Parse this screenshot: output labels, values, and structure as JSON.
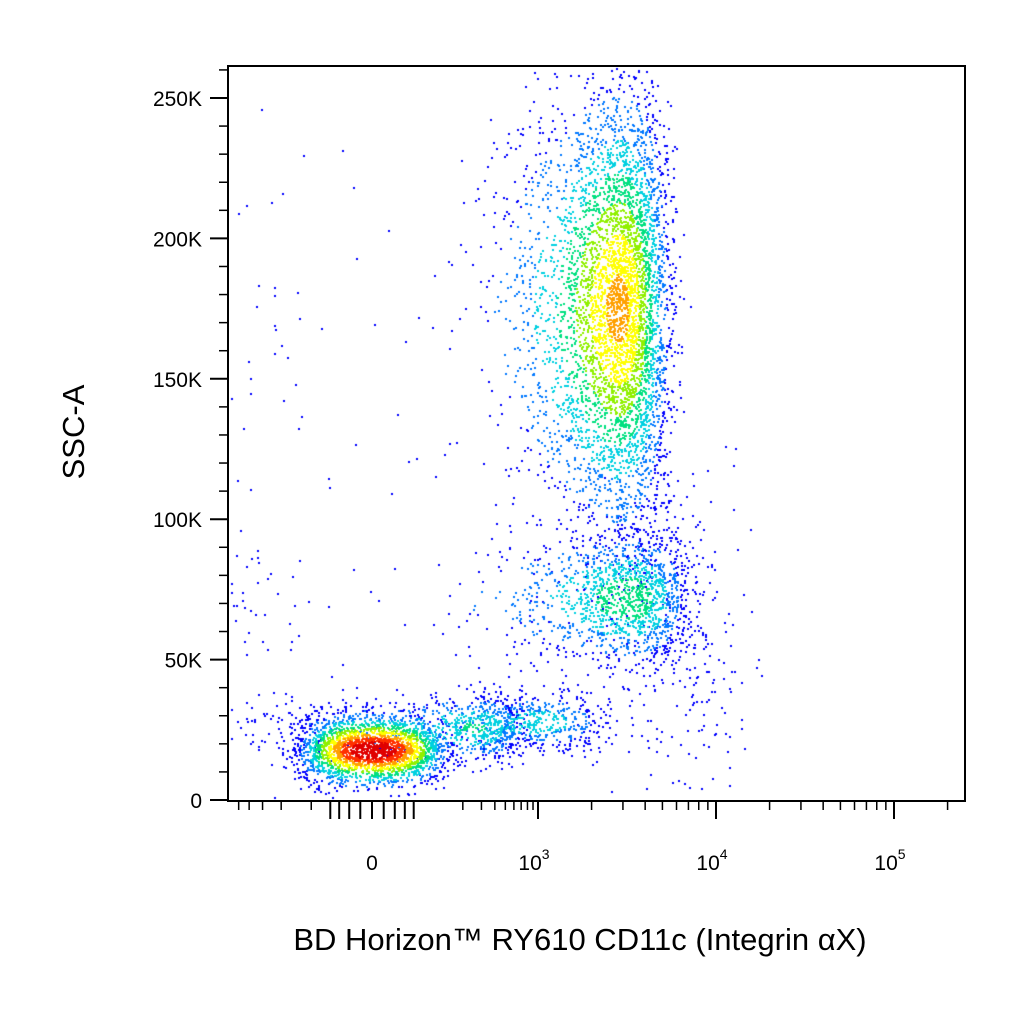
{
  "chart_data": {
    "type": "scatter",
    "title": "",
    "xlabel": "BD Horizon™ RY610 CD11c (Integrin αX)",
    "ylabel": "SSC-A",
    "x_scale": "biexponential",
    "xlim": [
      -600,
      200000
    ],
    "ylim": [
      -3000,
      262144
    ],
    "grid": false,
    "legend": "none",
    "x_ticks": [
      {
        "value": 0,
        "base": "0",
        "exp": ""
      },
      {
        "value": 1000,
        "base": "10",
        "exp": "3"
      },
      {
        "value": 10000,
        "base": "10",
        "exp": "4"
      },
      {
        "value": 100000,
        "base": "10",
        "exp": "5"
      }
    ],
    "y_ticks": [
      {
        "value": 0,
        "label": "0"
      },
      {
        "value": 50000,
        "label": "50K"
      },
      {
        "value": 100000,
        "label": "100K"
      },
      {
        "value": 150000,
        "label": "150K"
      },
      {
        "value": 200000,
        "label": "200K"
      },
      {
        "value": 250000,
        "label": "250K"
      }
    ],
    "density_colors": [
      "#0000ff",
      "#0078ff",
      "#00d0e0",
      "#00e080",
      "#90f000",
      "#ffff00",
      "#ffa000",
      "#ff3000",
      "#e00000"
    ],
    "populations": [
      {
        "x_center": 0,
        "x_spread": 60,
        "y_center": 18000,
        "y_spread": 6000,
        "events": 2600,
        "peak_density": 1.0
      },
      {
        "x_center": 250,
        "x_spread": 220,
        "y_center": 26000,
        "y_spread": 6000,
        "events": 700,
        "peak_density": 0.35
      },
      {
        "x_center": 900,
        "x_spread": 700,
        "y_center": 28000,
        "y_spread": 5000,
        "events": 500,
        "peak_density": 0.3
      },
      {
        "x_center": 2800,
        "x_spread": 1200,
        "y_center": 175000,
        "y_spread": 38000,
        "events": 5200,
        "peak_density": 0.7
      },
      {
        "x_center": 3200,
        "x_spread": 1800,
        "y_center": 72000,
        "y_spread": 12000,
        "events": 1500,
        "peak_density": 0.4
      },
      {
        "x_center": 4000,
        "x_spread": 5000,
        "y_center": 50000,
        "y_spread": 30000,
        "events": 350,
        "peak_density": 0.1
      }
    ]
  }
}
